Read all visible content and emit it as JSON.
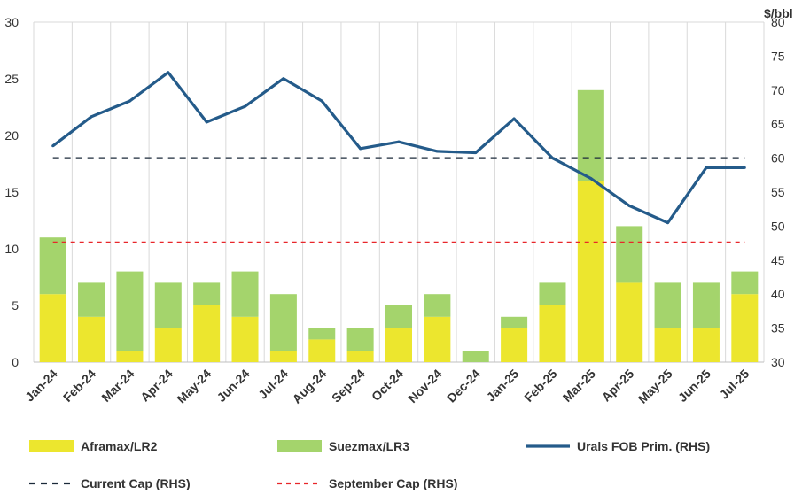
{
  "chart_data": {
    "type": "bar+line",
    "categories": [
      "Jan-24",
      "Feb-24",
      "Mar-24",
      "Apr-24",
      "May-24",
      "Jun-24",
      "Jul-24",
      "Aug-24",
      "Sep-24",
      "Oct-24",
      "Nov-24",
      "Dec-24",
      "Jan-25",
      "Feb-25",
      "Mar-25",
      "Apr-25",
      "May-25",
      "Jun-25",
      "Jul-25"
    ],
    "left_axis": {
      "ylim": [
        0,
        30
      ],
      "ticks": [
        0,
        5,
        10,
        15,
        20,
        25,
        30
      ]
    },
    "right_axis": {
      "ylim": [
        30,
        80
      ],
      "ticks": [
        30,
        35,
        40,
        45,
        50,
        55,
        60,
        65,
        70,
        75,
        80
      ],
      "unit_label": "$/bbl"
    },
    "series": [
      {
        "name": "Aframax/LR2",
        "kind": "stacked-bar",
        "axis": "left",
        "color": "#ece62e",
        "values": [
          6,
          4,
          1,
          3,
          5,
          4,
          1,
          2,
          1,
          3,
          4,
          0,
          3,
          5,
          16,
          7,
          3,
          3,
          6
        ]
      },
      {
        "name": "Suezmax/LR3",
        "kind": "stacked-bar",
        "axis": "left",
        "color": "#a4d46c",
        "values": [
          5,
          3,
          7,
          4,
          2,
          4,
          5,
          1,
          2,
          2,
          2,
          1,
          1,
          2,
          8,
          5,
          4,
          4,
          2
        ]
      },
      {
        "name": "Urals FOB Prim. (RHS)",
        "kind": "line",
        "axis": "right",
        "color": "#245b8a",
        "values": [
          61.8,
          66.1,
          68.4,
          72.6,
          65.3,
          67.6,
          71.7,
          68.4,
          61.4,
          62.4,
          61.0,
          60.8,
          65.8,
          60.0,
          57.0,
          53.0,
          50.5,
          58.6,
          58.6
        ]
      },
      {
        "name": "Current Cap (RHS)",
        "kind": "hline",
        "axis": "right",
        "color": "#1b2a3a",
        "value": 60
      },
      {
        "name": "September Cap (RHS)",
        "kind": "hline",
        "axis": "right",
        "color": "#e8262a",
        "value": 47.6
      }
    ],
    "grid": "vertical",
    "legend": "bottom"
  }
}
